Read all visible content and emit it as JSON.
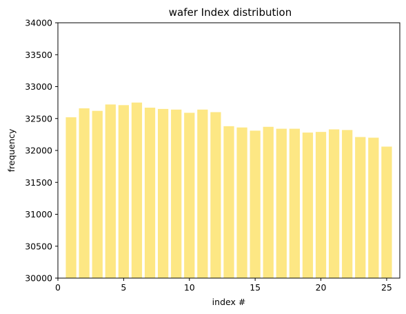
{
  "chart_data": {
    "type": "bar",
    "title": "wafer Index distribution",
    "xlabel": "index #",
    "ylabel": "frequency",
    "xlim": [
      0,
      26
    ],
    "ylim": [
      30000,
      34000
    ],
    "x_ticks": [
      0,
      5,
      10,
      15,
      20,
      25
    ],
    "y_ticks": [
      30000,
      30500,
      31000,
      31500,
      32000,
      32500,
      33000,
      33500,
      34000
    ],
    "bar_color": "#fde784",
    "grid": false,
    "categories": [
      1,
      2,
      3,
      4,
      5,
      6,
      7,
      8,
      9,
      10,
      11,
      12,
      13,
      14,
      15,
      16,
      17,
      18,
      19,
      20,
      21,
      22,
      23,
      24,
      25
    ],
    "values": [
      32520,
      32660,
      32620,
      32720,
      32710,
      32750,
      32670,
      32650,
      32640,
      32590,
      32640,
      32600,
      32380,
      32360,
      32310,
      32370,
      32340,
      32340,
      32280,
      32290,
      32330,
      32320,
      32210,
      32200,
      32060
    ]
  }
}
